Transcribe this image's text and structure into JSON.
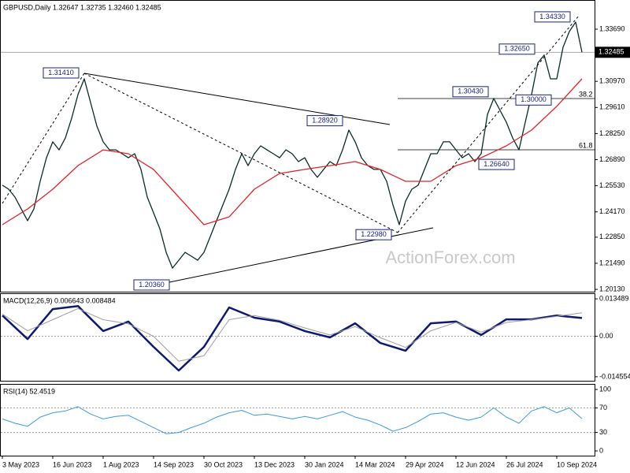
{
  "chart_data": [
    {
      "type": "line",
      "title": "GBPUSD,Daily  1.32647 1.32735 1.32460 1.32485",
      "xlim": [
        -1.5,
        376
      ],
      "ylim": [
        1.2001,
        1.3521
      ],
      "yticks": [
        {
          "value": 1.2013,
          "label": "1.20130"
        },
        {
          "value": 1.2149,
          "label": "1.21490"
        },
        {
          "value": 1.2285,
          "label": "1.22850"
        },
        {
          "value": 1.2417,
          "label": "1.24170"
        },
        {
          "value": 1.2553,
          "label": "1.25530"
        },
        {
          "value": 1.2689,
          "label": "1.26890"
        },
        {
          "value": 1.2825,
          "label": "1.28250"
        },
        {
          "value": 1.2961,
          "label": "1.29610"
        },
        {
          "value": 1.3097,
          "label": "1.30970"
        },
        {
          "value": 1.3369,
          "label": "1.33690"
        }
      ],
      "grid": false,
      "series": [
        {
          "color": "#0b2a2a",
          "x": [
            0,
            4,
            8,
            12,
            16,
            20,
            24,
            28,
            32,
            36,
            40,
            44,
            48,
            52,
            56,
            60,
            64,
            68,
            72,
            76,
            80,
            84,
            88,
            92,
            96,
            100,
            104,
            108,
            112,
            116,
            120,
            124,
            128,
            132,
            136,
            140,
            144,
            148,
            152,
            156,
            160,
            164,
            168,
            172,
            176,
            180,
            184,
            188,
            192,
            196,
            200,
            204,
            208,
            212,
            216,
            220,
            224,
            228,
            232,
            236,
            240,
            244,
            248,
            252,
            256,
            260,
            264,
            268,
            272,
            276,
            280,
            284,
            288,
            292,
            296,
            300,
            304,
            308,
            312,
            316,
            320,
            324,
            328,
            332,
            336,
            340,
            344,
            348,
            352,
            356,
            360,
            364,
            368
          ],
          "values": [
            1.2556,
            1.2535,
            1.2494,
            1.2432,
            1.2371,
            1.2432,
            1.2576,
            1.2699,
            1.2782,
            1.274,
            1.2802,
            1.2905,
            1.3028,
            1.311,
            1.2987,
            1.2864,
            1.2782,
            1.274,
            1.274,
            1.272,
            1.2699,
            1.272,
            1.2638,
            1.2494,
            1.2412,
            1.2329,
            1.2206,
            1.2124,
            1.2165,
            1.2206,
            1.2186,
            1.2165,
            1.2206,
            1.2288,
            1.2371,
            1.2453,
            1.2535,
            1.2638,
            1.272,
            1.2658,
            1.272,
            1.2761,
            1.274,
            1.272,
            1.2699,
            1.274,
            1.272,
            1.2679,
            1.2699,
            1.2638,
            1.2597,
            1.2638,
            1.2679,
            1.2658,
            1.274,
            1.2843,
            1.2782,
            1.2699,
            1.2658,
            1.2638,
            1.2638,
            1.2576,
            1.2453,
            1.235,
            1.2473,
            1.2535,
            1.2556,
            1.2638,
            1.272,
            1.272,
            1.2782,
            1.2782,
            1.274,
            1.2699,
            1.272,
            1.2679,
            1.272,
            1.2925,
            1.3008,
            1.2946,
            1.2884,
            1.2802,
            1.274,
            1.2884,
            1.3028,
            1.3193,
            1.3234,
            1.311,
            1.311,
            1.3275,
            1.3357,
            1.3406,
            1.32485
          ]
        },
        {
          "color": "#e0262b",
          "x": [
            0,
            16,
            32,
            48,
            64,
            80,
            96,
            112,
            128,
            144,
            160,
            176,
            192,
            208,
            224,
            240,
            256,
            272,
            288,
            304,
            320,
            336,
            352,
            368
          ],
          "values": [
            1.235,
            1.2432,
            1.2535,
            1.2658,
            1.274,
            1.272,
            1.2638,
            1.2494,
            1.235,
            1.2391,
            1.2535,
            1.2617,
            1.2638,
            1.2658,
            1.2679,
            1.2638,
            1.2576,
            1.2576,
            1.2658,
            1.2699,
            1.2761,
            1.2843,
            1.2967,
            1.311
          ]
        }
      ],
      "current_price": {
        "value": 1.32485,
        "label": "1.32485"
      },
      "annotations": [
        {
          "value": 1.3141,
          "label": "1.31410"
        },
        {
          "value": 1.2892,
          "label": "1.28920"
        },
        {
          "value": 1.2298,
          "label": "1.22980"
        },
        {
          "value": 1.2036,
          "label": "1.20360"
        },
        {
          "value": 1.3043,
          "label": "1.30430"
        },
        {
          "value": 1.2664,
          "label": "1.26640"
        },
        {
          "value": 1.3,
          "label": "1.30000"
        },
        {
          "value": 1.3265,
          "label": "1.32650"
        },
        {
          "value": 1.3433,
          "label": "1.34330"
        }
      ],
      "fib_labels": [
        "38.2",
        "61.8"
      ],
      "watermark": "ActionForex.com"
    },
    {
      "type": "line",
      "title": "MACD(12,26,9) 0.006643 0.008484",
      "xlim": [
        -1.5,
        376
      ],
      "ylim": [
        -0.016,
        0.0155
      ],
      "yticks": [
        {
          "value": -0.014554,
          "label": "-0.014554"
        },
        {
          "value": 0,
          "label": "0.00"
        },
        0.013489
      ],
      "grid": "dashed",
      "series": [
        {
          "color": "#0d1a6e",
          "width": 2.5,
          "x": [
            0,
            16,
            32,
            48,
            64,
            80,
            96,
            112,
            128,
            144,
            160,
            176,
            192,
            208,
            224,
            240,
            256,
            272,
            288,
            304,
            320,
            336,
            352,
            368
          ],
          "values": [
            0.0075,
            -0.001,
            0.0098,
            0.0109,
            0.0019,
            0.0053,
            -0.0038,
            -0.0123,
            -0.0038,
            0.0104,
            0.0067,
            0.0053,
            0.0019,
            -0.0004,
            0.0047,
            -0.0024,
            -0.0052,
            0.0047,
            0.0053,
            0.0005,
            0.0061,
            0.0061,
            0.0075,
            0.0066
          ]
        },
        {
          "color": "#9e9e9e",
          "width": 1,
          "x": [
            0,
            16,
            32,
            48,
            64,
            80,
            96,
            112,
            128,
            144,
            160,
            176,
            192,
            208,
            224,
            240,
            256,
            272,
            288,
            304,
            320,
            336,
            352,
            368
          ],
          "values": [
            0.008,
            0.002,
            0.006,
            0.01,
            0.006,
            0.0045,
            0.0,
            -0.009,
            -0.007,
            0.006,
            0.0075,
            0.0058,
            0.003,
            0.0005,
            0.0035,
            -0.0005,
            -0.004,
            0.002,
            0.005,
            0.0015,
            0.005,
            0.006,
            0.0072,
            0.0085
          ]
        }
      ]
    },
    {
      "type": "line",
      "title": "RSI(14) 52.4519",
      "xlim": [
        -1.5,
        376
      ],
      "ylim": [
        -7.7,
        109
      ],
      "yticks": [
        0,
        30,
        70,
        100
      ],
      "grid": "dashed",
      "xticks": [
        {
          "value": 0,
          "label": "3 May 2023"
        },
        {
          "value": 32,
          "label": "16 Jun 2023"
        },
        {
          "value": 64,
          "label": "1 Aug 2023"
        },
        {
          "value": 96,
          "label": "14 Sep 2023"
        },
        {
          "value": 128,
          "label": "30 Oct 2023"
        },
        {
          "value": 160,
          "label": "13 Dec 2023"
        },
        {
          "value": 192,
          "label": "30 Jan 2024"
        },
        {
          "value": 224,
          "label": "14 Mar 2024"
        },
        {
          "value": 256,
          "label": "29 Apr 2024"
        },
        {
          "value": 288,
          "label": "12 Jun 2024"
        },
        {
          "value": 320,
          "label": "26 Jul 2024"
        },
        {
          "value": 352,
          "label": "10 Sep 2024"
        }
      ],
      "series": [
        {
          "color": "#3d9be0",
          "width": 1,
          "x": [
            0,
            8,
            16,
            24,
            32,
            40,
            48,
            56,
            64,
            72,
            80,
            88,
            96,
            104,
            112,
            120,
            128,
            136,
            144,
            152,
            160,
            168,
            176,
            184,
            192,
            200,
            208,
            216,
            224,
            232,
            240,
            248,
            256,
            264,
            272,
            280,
            288,
            296,
            304,
            312,
            320,
            328,
            336,
            344,
            352,
            360,
            368
          ],
          "values": [
            52,
            45,
            40,
            55,
            62,
            65,
            72,
            60,
            52,
            56,
            58,
            48,
            38,
            28,
            30,
            38,
            45,
            55,
            62,
            66,
            58,
            60,
            56,
            52,
            56,
            52,
            58,
            64,
            55,
            50,
            42,
            32,
            38,
            48,
            60,
            62,
            55,
            50,
            55,
            70,
            55,
            45,
            65,
            72,
            62,
            70,
            52.4519
          ]
        }
      ]
    }
  ]
}
